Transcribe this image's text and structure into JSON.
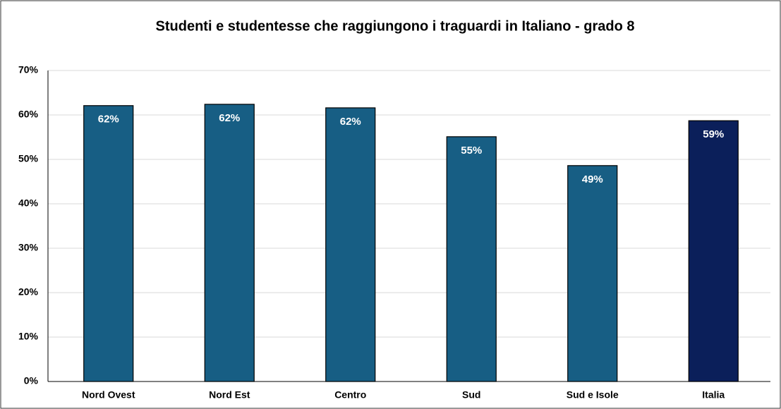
{
  "chart_data": {
    "type": "bar",
    "title": "Studenti e studentesse che raggiungono i traguardi in Italiano - grado 8",
    "categories": [
      "Nord Ovest",
      "Nord Est",
      "Centro",
      "Sud",
      "Sud e Isole",
      "Italia"
    ],
    "values": [
      62.1,
      62.4,
      61.6,
      55.1,
      48.6,
      58.7
    ],
    "value_labels": [
      "62%",
      "62%",
      "62%",
      "55%",
      "49%",
      "59%"
    ],
    "colors": [
      "#175e84",
      "#175e84",
      "#175e84",
      "#175e84",
      "#175e84",
      "#0b1f5a"
    ],
    "ylim": [
      0,
      70
    ],
    "yticks": [
      {
        "value": 0,
        "label": "0%"
      },
      {
        "value": 10,
        "label": "10%"
      },
      {
        "value": 20,
        "label": "20%"
      },
      {
        "value": 30,
        "label": "30%"
      },
      {
        "value": 40,
        "label": "40%"
      },
      {
        "value": 50,
        "label": "50%"
      },
      {
        "value": 60,
        "label": "60%"
      },
      {
        "value": 70,
        "label": "70%"
      }
    ],
    "grid": true
  }
}
